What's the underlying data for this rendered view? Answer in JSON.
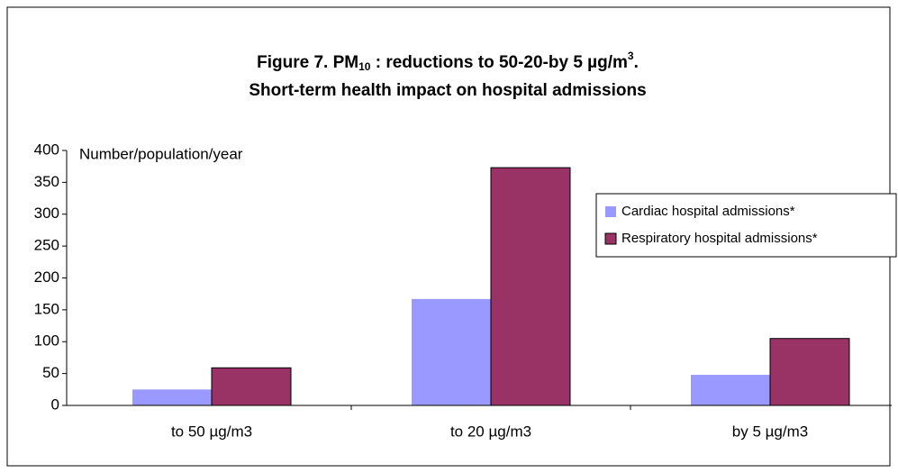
{
  "chart_data": {
    "type": "bar",
    "title": [
      "Figure 7. PM",
      "10",
      " : reductions to 50-20-by 5 µg/m",
      "3",
      "."
    ],
    "subtitle": "Short-term health impact on hospital admissions",
    "y_label": "Number/population/year",
    "categories": [
      "to 50 µg/m3",
      "to 20 µg/m3",
      "by 5 µg/m3"
    ],
    "series": [
      {
        "name": "Cardiac hospital admissions*",
        "color": "#9999ff",
        "values": [
          25,
          167,
          48
        ]
      },
      {
        "name": "Respiratory hospital admissions*",
        "color": "#993366",
        "values": [
          59,
          373,
          105
        ]
      }
    ],
    "ylim": [
      0,
      400
    ],
    "yticks": [
      0,
      50,
      100,
      150,
      200,
      250,
      300,
      350,
      400
    ],
    "legend": "right"
  }
}
